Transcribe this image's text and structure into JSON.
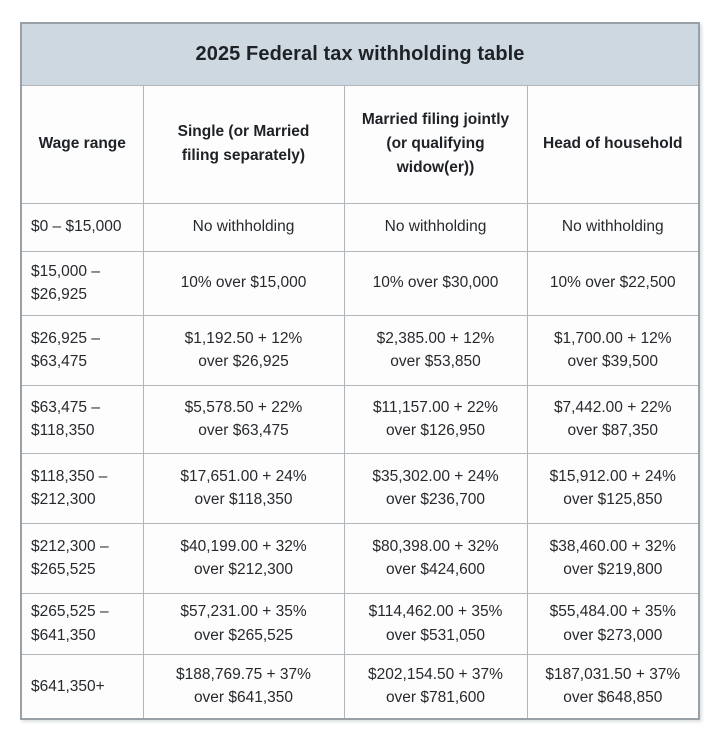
{
  "colors": {
    "title_band_bg": "#cdd8e0",
    "cell_bg": "#fdfdfd",
    "border_inner": "#b0b6bb",
    "border_outer": "#9aa1a6",
    "text": "#26292d"
  },
  "chart_data": {
    "type": "table",
    "title": "2025 Federal tax withholding table",
    "columns": [
      "Wage range",
      "Single (or Married\nfiling separately)",
      "Married filing jointly\n(or qualifying\nwidow(er))",
      "Head of household"
    ],
    "rows": [
      [
        "$0 – $15,000",
        "No withholding",
        "No withholding",
        "No withholding"
      ],
      [
        "$15,000 –\n$26,925",
        "10% over $15,000",
        "10% over $30,000",
        "10% over $22,500"
      ],
      [
        "$26,925 –\n$63,475",
        "$1,192.50 + 12%\nover $26,925",
        "$2,385.00 + 12%\nover $53,850",
        "$1,700.00 + 12%\nover $39,500"
      ],
      [
        "$63,475 –\n$118,350",
        "$5,578.50 + 22%\nover $63,475",
        "$11,157.00 + 22%\nover $126,950",
        "$7,442.00 + 22%\nover $87,350"
      ],
      [
        "$118,350 –\n$212,300",
        "$17,651.00 + 24%\nover $118,350",
        "$35,302.00 + 24%\nover $236,700",
        "$15,912.00 + 24%\nover $125,850"
      ],
      [
        "$212,300 –\n$265,525",
        "$40,199.00 + 32%\nover $212,300",
        "$80,398.00 + 32%\nover $424,600",
        "$38,460.00 + 32%\nover $219,800"
      ],
      [
        "$265,525 –\n$641,350",
        "$57,231.00 + 35%\nover $265,525",
        "$114,462.00 + 35%\nover $531,050",
        "$55,484.00 + 35%\nover $273,000"
      ],
      [
        "$641,350+",
        "$188,769.75 + 37%\nover $641,350",
        "$202,154.50 + 37%\nover $781,600",
        "$187,031.50 + 37%\nover $648,850"
      ]
    ]
  }
}
